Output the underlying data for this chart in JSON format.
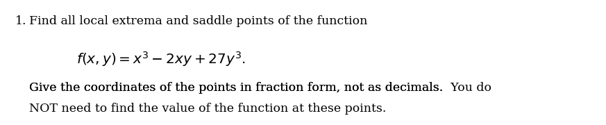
{
  "background_color": "#ffffff",
  "number": "1.",
  "line1": "Find all local extrema and saddle points of the function",
  "formula_latex": "$f(x, y) = x^3 - 2xy + 27y^3.$",
  "line2a": "Give the coordinates of the points in fraction form, not as decimals.",
  "line2b": "You do",
  "line3": "NOT need to find the value of the function at these points.",
  "text_color": "#000000",
  "font_size_body": 12.5,
  "font_size_formula": 14.5,
  "fig_width": 8.73,
  "fig_height": 1.8,
  "dpi": 100
}
